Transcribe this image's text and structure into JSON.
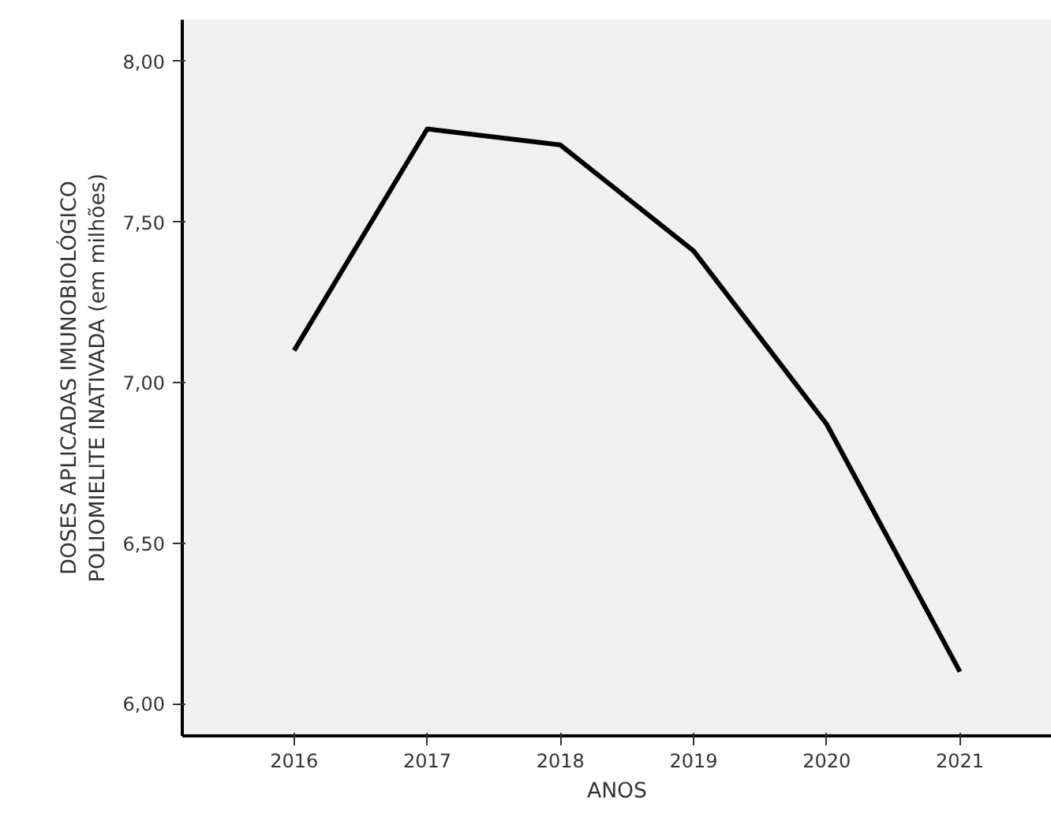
{
  "chart_data": {
    "type": "line",
    "xlabel": "ANOS",
    "ylabel": "DOSES APLICADAS IMUNOBIOLÓGICO\nPOLIOMIELITE INATIVADA (em milhões)",
    "x": [
      2016,
      2017,
      2018,
      2019,
      2020,
      2021
    ],
    "series": [
      {
        "color": "#000000",
        "values": [
          7.1,
          7.79,
          7.74,
          7.41,
          6.87,
          6.1
        ]
      }
    ],
    "xlim": [
      2015.16,
      2021.69
    ],
    "xticks": [
      2016,
      2017,
      2018,
      2019,
      2020,
      2021
    ],
    "ylim": [
      5.9,
      8.13
    ],
    "yticks": [
      {
        "value": 6.0,
        "label": "6,00"
      },
      {
        "value": 6.5,
        "label": "6,50"
      },
      {
        "value": 7.0,
        "label": "7,00"
      },
      {
        "value": 7.5,
        "label": "7,50"
      },
      {
        "value": 8.0,
        "label": "8,00"
      }
    ],
    "grid": false,
    "line_style": "solid"
  }
}
